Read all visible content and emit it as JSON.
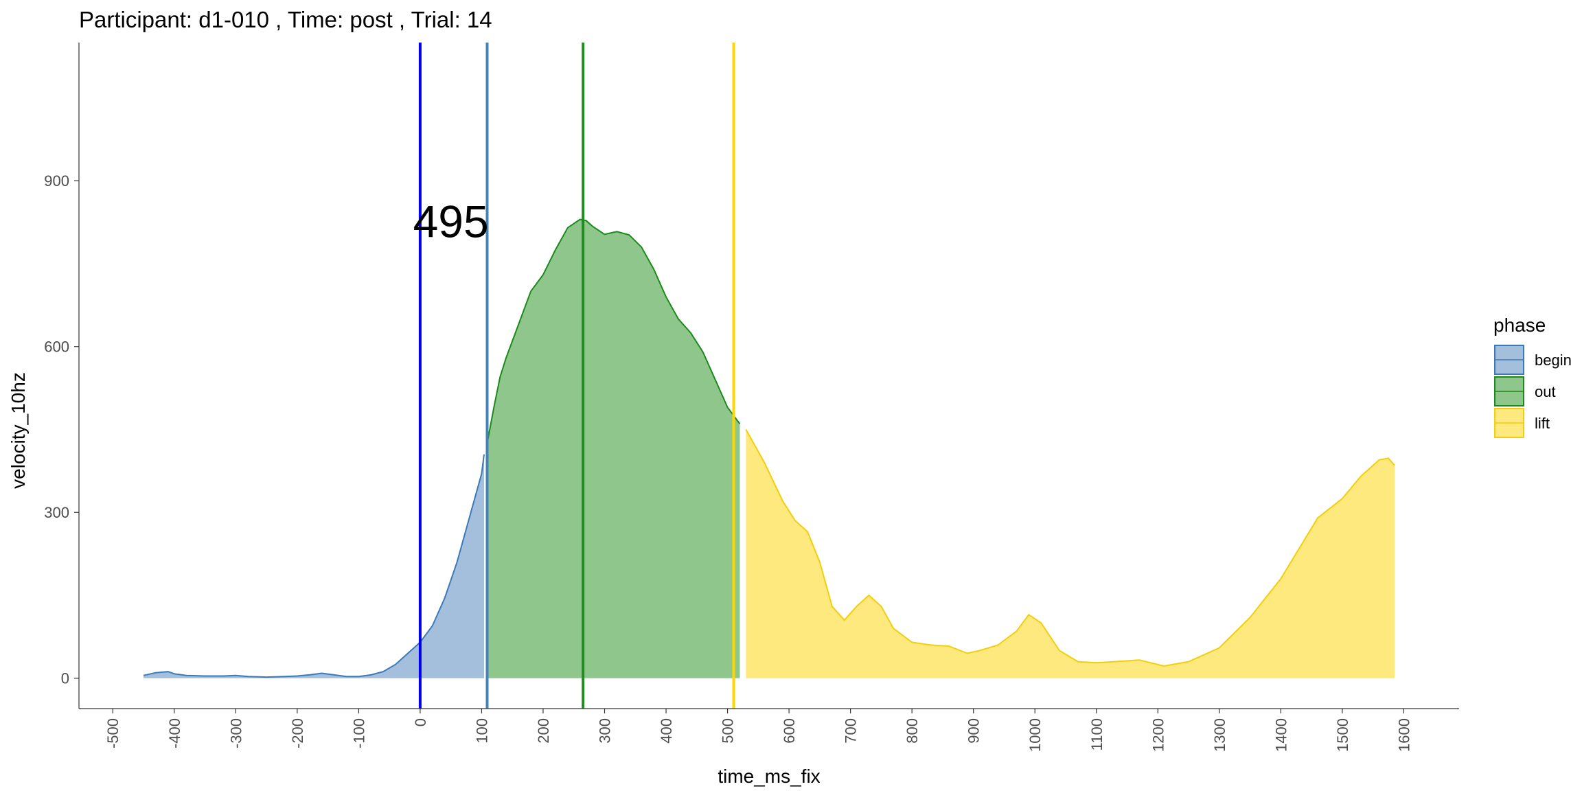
{
  "chart_data": {
    "type": "area",
    "title": "Participant:  d1-010 , Time: post , Trial:  14",
    "xlabel": "time_ms_fix",
    "ylabel": "velocity_10hz",
    "xlim": [
      -555,
      1690
    ],
    "ylim": [
      -55,
      1150
    ],
    "x_ticks": [
      -500,
      -400,
      -300,
      -200,
      -100,
      0,
      100,
      200,
      300,
      400,
      500,
      600,
      700,
      800,
      900,
      1000,
      1100,
      1200,
      1300,
      1400,
      1500,
      1600
    ],
    "y_ticks": [
      0,
      300,
      600,
      900
    ],
    "grid": false,
    "legend": {
      "title": "phase",
      "placement": "right",
      "entries": [
        {
          "label": "begin",
          "fill": "#a3bfdc",
          "stroke": "#3b7ab9"
        },
        {
          "label": "out",
          "fill": "#8fc68c",
          "stroke": "#1a8a1a"
        },
        {
          "label": "lift",
          "fill": "#fde97d",
          "stroke": "#f2ce0c"
        }
      ]
    },
    "series": [
      {
        "name": "begin",
        "fill": "#a3bfdc",
        "stroke": "#3b7ab9",
        "x": [
          -450,
          -430,
          -410,
          -400,
          -380,
          -350,
          -320,
          -300,
          -280,
          -250,
          -220,
          -200,
          -180,
          -160,
          -140,
          -120,
          -100,
          -80,
          -60,
          -40,
          -20,
          0,
          20,
          40,
          60,
          80,
          100,
          104
        ],
        "y": [
          5,
          10,
          12,
          8,
          5,
          4,
          4,
          5,
          3,
          2,
          3,
          4,
          6,
          9,
          6,
          3,
          3,
          6,
          12,
          25,
          45,
          65,
          95,
          145,
          210,
          290,
          370,
          405
        ]
      },
      {
        "name": "out",
        "fill": "#8fc68c",
        "stroke": "#1a8a1a",
        "x": [
          109,
          120,
          130,
          140,
          160,
          180,
          200,
          220,
          240,
          260,
          270,
          280,
          300,
          320,
          340,
          360,
          380,
          400,
          420,
          440,
          460,
          480,
          500,
          520
        ],
        "y": [
          425,
          490,
          545,
          580,
          640,
          700,
          730,
          775,
          815,
          830,
          828,
          818,
          803,
          808,
          802,
          780,
          740,
          690,
          650,
          625,
          590,
          540,
          490,
          460
        ]
      },
      {
        "name": "lift",
        "fill": "#fde97d",
        "stroke": "#f2ce0c",
        "x": [
          530,
          560,
          590,
          610,
          630,
          650,
          670,
          690,
          710,
          730,
          750,
          770,
          800,
          830,
          860,
          890,
          910,
          940,
          970,
          990,
          1010,
          1040,
          1070,
          1100,
          1130,
          1170,
          1210,
          1250,
          1300,
          1350,
          1400,
          1430,
          1460,
          1500,
          1530,
          1560,
          1575,
          1585
        ],
        "y": [
          450,
          390,
          320,
          285,
          265,
          210,
          130,
          105,
          130,
          150,
          130,
          90,
          65,
          60,
          58,
          45,
          50,
          60,
          85,
          115,
          100,
          50,
          30,
          28,
          30,
          33,
          22,
          30,
          55,
          110,
          180,
          235,
          290,
          325,
          365,
          395,
          398,
          385
        ]
      }
    ],
    "vlines": [
      {
        "x": 0,
        "color": "#0000ee"
      },
      {
        "x": 109,
        "color": "#4682b4"
      },
      {
        "x": 265,
        "color": "#228b22"
      },
      {
        "x": 510,
        "color": "#ffd700"
      }
    ],
    "annotations": [
      {
        "text": "495",
        "x": 50,
        "y": 825
      }
    ]
  }
}
